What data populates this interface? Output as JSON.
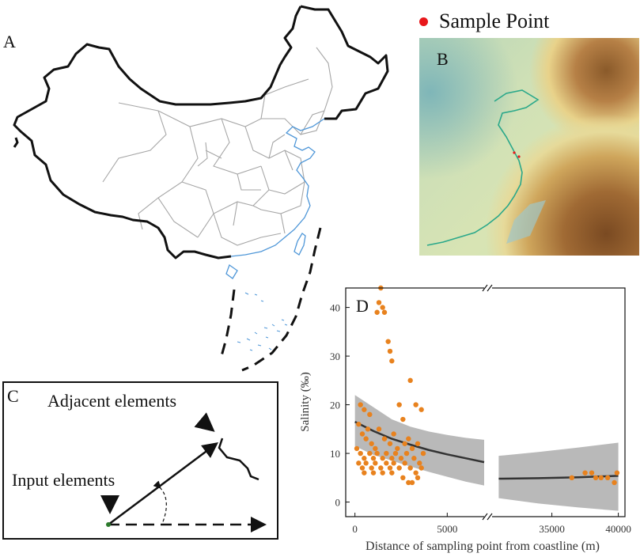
{
  "panels": {
    "a": {
      "letter": "A"
    },
    "b": {
      "letter": "B",
      "legend_label": "Sample Point",
      "legend_color": "#e8171b"
    },
    "c": {
      "letter": "C",
      "adjacent_label": "Adjacent elements",
      "input_label": "Input elements"
    },
    "d": {
      "letter": "D"
    }
  },
  "colors": {
    "border": "#111111",
    "province_lines": "#a6a6a6",
    "coast_lines": "#4f97d8",
    "points": "#e8821e",
    "fit_line": "#333333",
    "ci_band": "#b9b9b9"
  },
  "chart_data": {
    "type": "scatter",
    "xlabel": "Distance of sampling point from coastline (m)",
    "ylabel": "Salinity (‰)",
    "ylim": [
      -3,
      44
    ],
    "yticks": [
      0,
      10,
      20,
      30,
      40
    ],
    "axis_break": true,
    "segments": [
      {
        "xlim": [
          -500,
          7000
        ],
        "xticks": [
          0,
          5000
        ]
      },
      {
        "xlim": [
          30500,
          40500
        ],
        "xticks": [
          35000,
          40000
        ]
      }
    ],
    "fit": {
      "segment1": {
        "x": [
          0,
          1000,
          2000,
          3000,
          4000,
          5000,
          6000,
          7000
        ],
        "y": [
          16.5,
          14.6,
          13.0,
          11.8,
          10.7,
          9.8,
          9.0,
          8.2
        ]
      },
      "segment2": {
        "x": [
          31000,
          34000,
          37000,
          40000
        ],
        "y": [
          4.8,
          4.9,
          5.1,
          5.4
        ]
      }
    },
    "ci": {
      "segment1": {
        "x": [
          0,
          1000,
          2000,
          3000,
          4000,
          5000,
          6000,
          7000
        ],
        "upper": [
          22.0,
          19.5,
          17.0,
          15.5,
          14.5,
          13.8,
          13.2,
          12.8
        ],
        "lower": [
          11.5,
          9.7,
          8.5,
          7.3,
          6.2,
          5.2,
          4.2,
          3.4
        ]
      },
      "segment2": {
        "x": [
          31000,
          34000,
          37000,
          40000
        ],
        "upper": [
          9.5,
          10.3,
          11.2,
          12.2
        ],
        "lower": [
          0.8,
          -0.3,
          -1.1,
          -1.8
        ]
      }
    },
    "points": [
      {
        "x": 300,
        "y": 20
      },
      {
        "x": 500,
        "y": 19
      },
      {
        "x": 800,
        "y": 18
      },
      {
        "x": 1200,
        "y": 39
      },
      {
        "x": 1300,
        "y": 41
      },
      {
        "x": 1500,
        "y": 40
      },
      {
        "x": 1600,
        "y": 39
      },
      {
        "x": 1400,
        "y": 44
      },
      {
        "x": 1800,
        "y": 33
      },
      {
        "x": 1900,
        "y": 31
      },
      {
        "x": 2000,
        "y": 29
      },
      {
        "x": 2400,
        "y": 20
      },
      {
        "x": 2600,
        "y": 17
      },
      {
        "x": 3000,
        "y": 25
      },
      {
        "x": 3300,
        "y": 20
      },
      {
        "x": 3600,
        "y": 19
      },
      {
        "x": 200,
        "y": 16
      },
      {
        "x": 400,
        "y": 14
      },
      {
        "x": 600,
        "y": 13
      },
      {
        "x": 700,
        "y": 15
      },
      {
        "x": 900,
        "y": 12
      },
      {
        "x": 1100,
        "y": 11
      },
      {
        "x": 1300,
        "y": 15
      },
      {
        "x": 1600,
        "y": 13
      },
      {
        "x": 1900,
        "y": 12
      },
      {
        "x": 2100,
        "y": 14
      },
      {
        "x": 2300,
        "y": 11
      },
      {
        "x": 2700,
        "y": 12
      },
      {
        "x": 2900,
        "y": 13
      },
      {
        "x": 3100,
        "y": 11
      },
      {
        "x": 3400,
        "y": 12
      },
      {
        "x": 3700,
        "y": 10
      },
      {
        "x": 100,
        "y": 11
      },
      {
        "x": 300,
        "y": 10
      },
      {
        "x": 500,
        "y": 9
      },
      {
        "x": 800,
        "y": 10
      },
      {
        "x": 1000,
        "y": 9
      },
      {
        "x": 1200,
        "y": 10
      },
      {
        "x": 1500,
        "y": 9
      },
      {
        "x": 1700,
        "y": 10
      },
      {
        "x": 2000,
        "y": 9
      },
      {
        "x": 2200,
        "y": 10
      },
      {
        "x": 2500,
        "y": 9
      },
      {
        "x": 2800,
        "y": 10
      },
      {
        "x": 3200,
        "y": 9
      },
      {
        "x": 3500,
        "y": 8
      },
      {
        "x": 200,
        "y": 8
      },
      {
        "x": 400,
        "y": 7
      },
      {
        "x": 600,
        "y": 8
      },
      {
        "x": 900,
        "y": 7
      },
      {
        "x": 1100,
        "y": 8
      },
      {
        "x": 1400,
        "y": 7
      },
      {
        "x": 1700,
        "y": 8
      },
      {
        "x": 1900,
        "y": 7
      },
      {
        "x": 2100,
        "y": 8
      },
      {
        "x": 2400,
        "y": 7
      },
      {
        "x": 2700,
        "y": 8
      },
      {
        "x": 3000,
        "y": 7
      },
      {
        "x": 3300,
        "y": 6
      },
      {
        "x": 3600,
        "y": 7
      },
      {
        "x": 500,
        "y": 6
      },
      {
        "x": 1000,
        "y": 6
      },
      {
        "x": 1500,
        "y": 6
      },
      {
        "x": 2000,
        "y": 6
      },
      {
        "x": 2600,
        "y": 5
      },
      {
        "x": 2900,
        "y": 4
      },
      {
        "x": 3100,
        "y": 4
      },
      {
        "x": 3400,
        "y": 5
      },
      {
        "x": 36500,
        "y": 5
      },
      {
        "x": 37500,
        "y": 6
      },
      {
        "x": 38000,
        "y": 6
      },
      {
        "x": 38300,
        "y": 5
      },
      {
        "x": 38700,
        "y": 5
      },
      {
        "x": 39200,
        "y": 5
      },
      {
        "x": 39700,
        "y": 4
      },
      {
        "x": 39900,
        "y": 6
      }
    ]
  }
}
